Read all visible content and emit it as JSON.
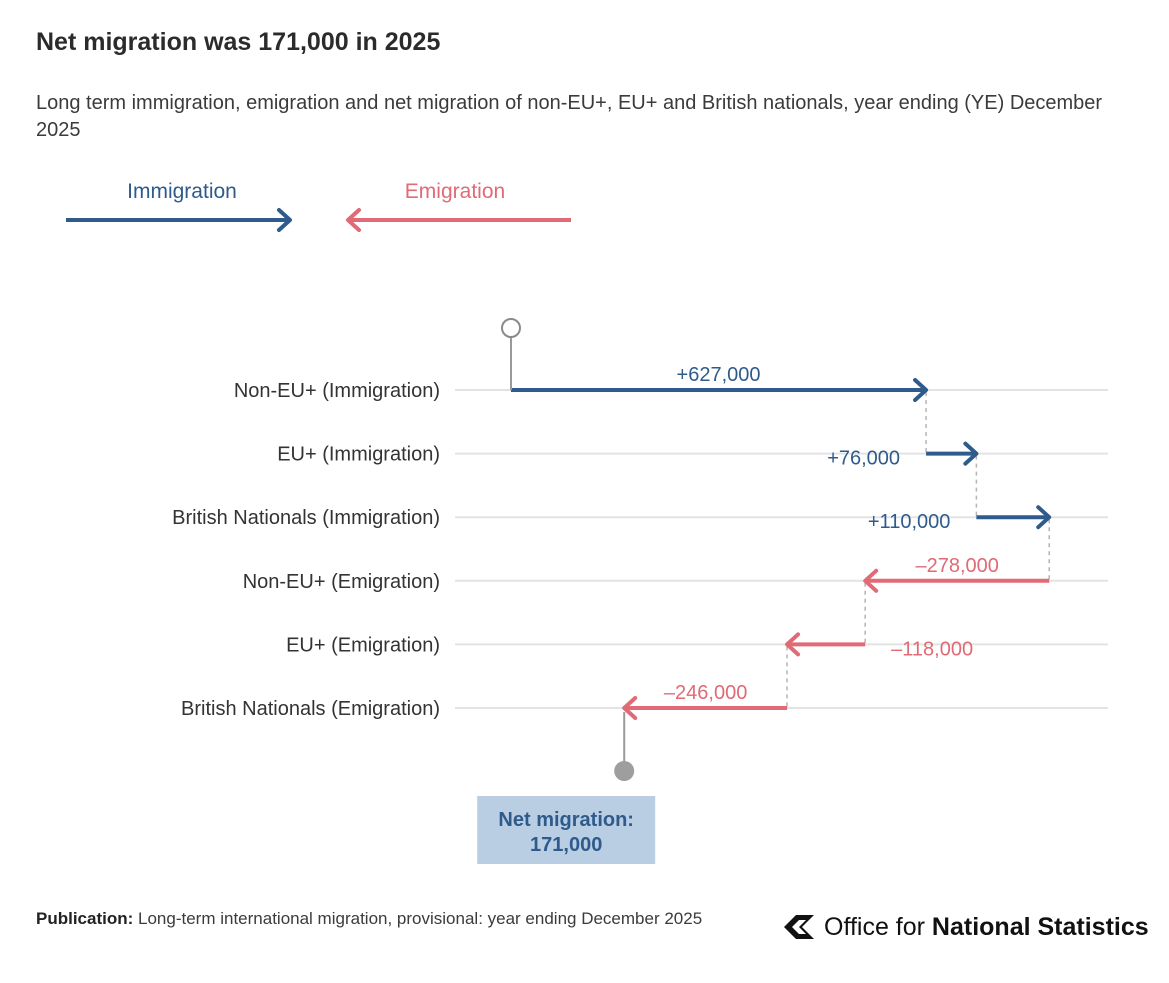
{
  "header": {
    "title": "Net migration was 171,000 in 2025",
    "subtitle": "Long term immigration, emigration and net migration of non-EU+, EU+ and British nationals, year ending (YE) December 2025"
  },
  "legend": {
    "immigration": "Immigration",
    "emigration": "Emigration"
  },
  "colors": {
    "immigration": "#2f5b8c",
    "emigration": "#e06a75",
    "net_box": "#b9cde3",
    "grid": "#e3e3e3",
    "connector": "#b5b5b5"
  },
  "chart_data": {
    "type": "waterfall",
    "start": 0,
    "steps": [
      {
        "category": "Non-EU+ (Immigration)",
        "value": 627000,
        "label": "+627,000",
        "kind": "immigration"
      },
      {
        "category": "EU+ (Immigration)",
        "value": 76000,
        "label": "+76,000",
        "kind": "immigration"
      },
      {
        "category": "British Nationals (Immigration)",
        "value": 110000,
        "label": "+110,000",
        "kind": "immigration"
      },
      {
        "category": "Non-EU+ (Emigration)",
        "value": -278000,
        "label": "–278,000",
        "kind": "emigration"
      },
      {
        "category": "EU+ (Emigration)",
        "value": -118000,
        "label": "–118,000",
        "kind": "emigration"
      },
      {
        "category": "British Nationals (Emigration)",
        "value": -246000,
        "label": "–246,000",
        "kind": "emigration"
      }
    ],
    "net": {
      "value": 171000,
      "label_line1": "Net migration:",
      "label_line2": "171,000"
    }
  },
  "footer": {
    "publication_label": "Publication:",
    "publication_text": "Long-term international migration, provisional: year ending December 2025"
  },
  "logo": {
    "text_light": "Office for",
    "text_bold": "National Statistics",
    "icon": "ons-logo-icon"
  }
}
